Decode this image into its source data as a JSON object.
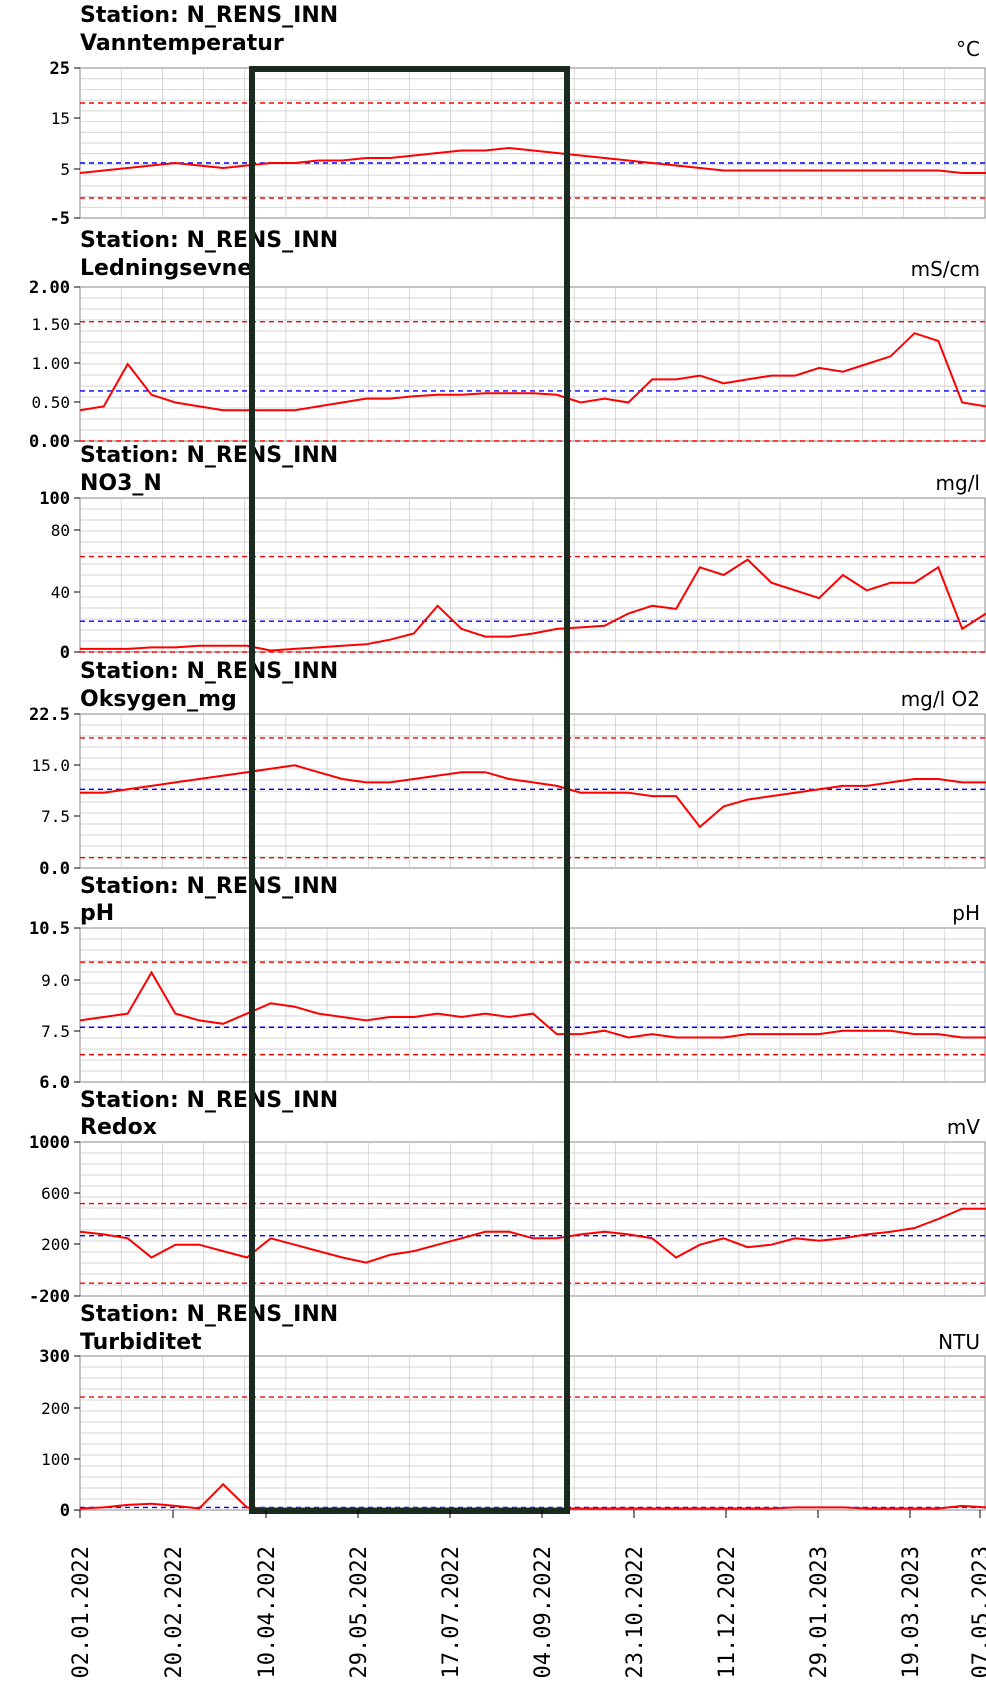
{
  "chart_data": {
    "type": "line",
    "panels": [
      {
        "station": "Station: N_RENS_INN",
        "parameter": "Vanntemperatur",
        "unit": "°C",
        "ylim": [
          -5,
          25
        ],
        "yticks": [
          "25",
          "15",
          "5",
          "-5"
        ],
        "red_limits": [
          18,
          -1
        ],
        "blue_ref": 6,
        "series": {
          "values": [
            4,
            4.5,
            5,
            5.5,
            6,
            5.5,
            5,
            5.5,
            6,
            6,
            6.5,
            6.5,
            7,
            7,
            7.5,
            8,
            8.5,
            8.5,
            9,
            8.5,
            8,
            7.5,
            7,
            6.5,
            6,
            5.5,
            5,
            4.5,
            4.5,
            4.5,
            4.5,
            4.5,
            4.5,
            4.5,
            4.5,
            4.5,
            4.5,
            4,
            4
          ]
        }
      },
      {
        "station": "Station: N_RENS_INN",
        "parameter": "Ledningsevne",
        "unit": "mS/cm",
        "ylim": [
          0,
          2
        ],
        "yticks": [
          "2.00",
          "1.50",
          "1.00",
          "0.50",
          "0.00"
        ],
        "red_limits": [
          1.55,
          0
        ],
        "blue_ref": 0.65,
        "series": {
          "values": [
            0.4,
            0.45,
            1.0,
            0.6,
            0.5,
            0.45,
            0.4,
            0.4,
            0.4,
            0.4,
            0.45,
            0.5,
            0.55,
            0.55,
            0.58,
            0.6,
            0.6,
            0.62,
            0.62,
            0.62,
            0.6,
            0.5,
            0.55,
            0.5,
            0.8,
            0.8,
            0.85,
            0.75,
            0.8,
            0.85,
            0.85,
            0.95,
            0.9,
            1.0,
            1.1,
            1.4,
            1.3,
            0.5,
            0.45
          ]
        }
      },
      {
        "station": "Station: N_RENS_INN",
        "parameter": "NO3_N",
        "unit": "mg/l",
        "ylim": [
          0,
          100
        ],
        "yticks": [
          "100",
          "80",
          "40",
          "0"
        ],
        "red_limits": [
          62,
          0
        ],
        "blue_ref": 20,
        "series": {
          "values": [
            2,
            2,
            2,
            3,
            3,
            4,
            4,
            4,
            1,
            2,
            3,
            4,
            5,
            8,
            12,
            30,
            15,
            10,
            10,
            12,
            15,
            16,
            17,
            25,
            30,
            28,
            55,
            50,
            60,
            45,
            40,
            35,
            50,
            40,
            45,
            45,
            55,
            15,
            25
          ]
        }
      },
      {
        "station": "Station: N_RENS_INN",
        "parameter": "Oksygen_mg",
        "unit": "mg/l O2",
        "ylim": [
          0,
          22.5
        ],
        "yticks": [
          "22.5",
          "15.0",
          "7.5",
          "0.0"
        ],
        "red_limits": [
          19,
          1.5
        ],
        "blue_ref": 11.5,
        "series": {
          "values": [
            11,
            11,
            11.5,
            12,
            12.5,
            13,
            13.5,
            14,
            14.5,
            15,
            14,
            13,
            12.5,
            12.5,
            13,
            13.5,
            14,
            14,
            13,
            12.5,
            12,
            11,
            11,
            11,
            10.5,
            10.5,
            6,
            9,
            10,
            10.5,
            11,
            11.5,
            12,
            12,
            12.5,
            13,
            13,
            12.5,
            12.5
          ]
        }
      },
      {
        "station": "Station: N_RENS_INN",
        "parameter": "pH",
        "unit": "pH",
        "ylim": [
          6.0,
          10.5
        ],
        "yticks": [
          "10.5",
          "9.0",
          "7.5",
          "6.0"
        ],
        "red_limits": [
          9.5,
          6.8
        ],
        "blue_ref": 7.6,
        "series": {
          "values": [
            7.8,
            7.9,
            8.0,
            9.2,
            8.0,
            7.8,
            7.7,
            8.0,
            8.3,
            8.2,
            8.0,
            7.9,
            7.8,
            7.9,
            7.9,
            8.0,
            7.9,
            8.0,
            7.9,
            8.0,
            7.4,
            7.4,
            7.5,
            7.3,
            7.4,
            7.3,
            7.3,
            7.3,
            7.4,
            7.4,
            7.4,
            7.4,
            7.5,
            7.5,
            7.5,
            7.4,
            7.4,
            7.3,
            7.3
          ]
        }
      },
      {
        "station": "Station: N_RENS_INN",
        "parameter": "Redox",
        "unit": "mV",
        "ylim": [
          -200,
          1000
        ],
        "yticks": [
          "1000",
          "600",
          "200",
          "-200"
        ],
        "red_limits": [
          520,
          -100
        ],
        "blue_ref": 270,
        "series": {
          "values": [
            300,
            280,
            250,
            100,
            200,
            200,
            150,
            100,
            250,
            200,
            150,
            100,
            60,
            120,
            150,
            200,
            250,
            300,
            300,
            250,
            250,
            280,
            300,
            280,
            250,
            100,
            200,
            250,
            180,
            200,
            250,
            230,
            250,
            280,
            300,
            330,
            400,
            480,
            480
          ]
        }
      },
      {
        "station": "Station: N_RENS_INN",
        "parameter": "Turbiditet",
        "unit": "NTU",
        "ylim": [
          0,
          300
        ],
        "yticks": [
          "300",
          "200",
          "100",
          "0"
        ],
        "red_limits": [
          220,
          null
        ],
        "blue_ref": 5,
        "series": {
          "values": [
            3,
            5,
            10,
            12,
            8,
            3,
            50,
            5,
            3,
            3,
            3,
            3,
            3,
            3,
            3,
            3,
            3,
            3,
            3,
            3,
            3,
            3,
            3,
            3,
            3,
            3,
            3,
            3,
            3,
            3,
            5,
            5,
            5,
            3,
            3,
            3,
            3,
            8,
            5
          ]
        }
      }
    ],
    "x_ticks": [
      "02.01.2022",
      "20.02.2022",
      "10.04.2022",
      "29.05.2022",
      "17.07.2022",
      "04.09.2022",
      "23.10.2022",
      "11.12.2022",
      "29.01.2023",
      "19.03.2023",
      "07.05.2023"
    ],
    "highlight_range": [
      "10.04.2022",
      "04.09.2022"
    ],
    "colors": {
      "series": "#ff0000",
      "limit": "#ff0000",
      "reference": "#0000ff",
      "grid": "#c8c8c8",
      "highlight": "#1a2a1f"
    }
  }
}
